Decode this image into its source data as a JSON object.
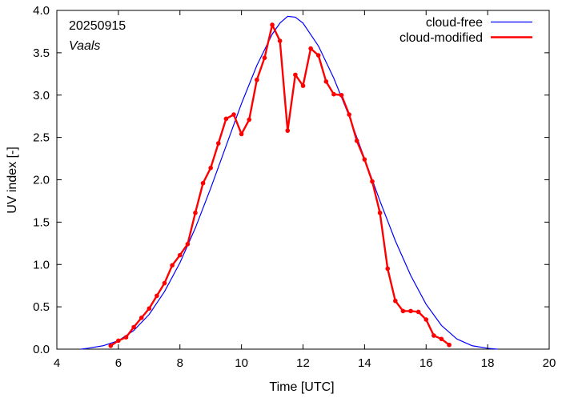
{
  "chart_data": {
    "type": "line",
    "annotations": {
      "date": "20250915",
      "location": "Vaals"
    },
    "xlabel": "Time  [UTC]",
    "ylabel": "UV index  [-]",
    "xlim": [
      4,
      20
    ],
    "ylim": [
      0,
      4
    ],
    "xticks": [
      4,
      6,
      8,
      10,
      12,
      14,
      16,
      18,
      20
    ],
    "yticks": [
      0.0,
      0.5,
      1.0,
      1.5,
      2.0,
      2.5,
      3.0,
      3.5,
      4.0
    ],
    "ytick_labels": [
      "0.0",
      "0.5",
      "1.0",
      "1.5",
      "2.0",
      "2.5",
      "3.0",
      "3.5",
      "4.0"
    ],
    "grid": false,
    "legend_position": "top-right",
    "series": [
      {
        "name": "cloud-free",
        "color": "#0000ff",
        "markers": false,
        "x": [
          4.8,
          5.0,
          5.5,
          6.0,
          6.5,
          7.0,
          7.5,
          8.0,
          8.5,
          9.0,
          9.5,
          10.0,
          10.5,
          11.0,
          11.25,
          11.5,
          11.75,
          12.0,
          12.5,
          13.0,
          13.5,
          14.0,
          14.5,
          15.0,
          15.5,
          16.0,
          16.5,
          17.0,
          17.5,
          18.0,
          18.3
        ],
        "y": [
          0.0,
          0.01,
          0.04,
          0.1,
          0.22,
          0.41,
          0.68,
          1.02,
          1.43,
          1.9,
          2.4,
          2.9,
          3.35,
          3.72,
          3.85,
          3.93,
          3.92,
          3.85,
          3.58,
          3.2,
          2.75,
          2.25,
          1.75,
          1.28,
          0.87,
          0.53,
          0.28,
          0.12,
          0.04,
          0.01,
          0.0
        ]
      },
      {
        "name": "cloud-modified",
        "color": "#ff0000",
        "markers": true,
        "x": [
          5.75,
          6.0,
          6.25,
          6.5,
          6.75,
          7.0,
          7.25,
          7.5,
          7.75,
          8.0,
          8.25,
          8.5,
          8.75,
          9.0,
          9.25,
          9.5,
          9.75,
          10.0,
          10.25,
          10.5,
          10.75,
          11.0,
          11.25,
          11.5,
          11.75,
          12.0,
          12.25,
          12.5,
          12.75,
          13.0,
          13.25,
          13.5,
          13.75,
          14.0,
          14.25,
          14.5,
          14.75,
          15.0,
          15.25,
          15.5,
          15.75,
          16.0,
          16.25,
          16.5,
          16.75
        ],
        "y": [
          0.04,
          0.1,
          0.14,
          0.26,
          0.37,
          0.48,
          0.63,
          0.78,
          0.99,
          1.11,
          1.24,
          1.61,
          1.96,
          2.14,
          2.43,
          2.72,
          2.77,
          2.54,
          2.71,
          3.18,
          3.44,
          3.83,
          3.64,
          2.58,
          3.24,
          3.11,
          3.55,
          3.47,
          3.16,
          3.01,
          3.0,
          2.77,
          2.46,
          2.24,
          1.98,
          1.61,
          0.95,
          0.57,
          0.45,
          0.45,
          0.44,
          0.35,
          0.16,
          0.12,
          0.05
        ]
      }
    ]
  }
}
